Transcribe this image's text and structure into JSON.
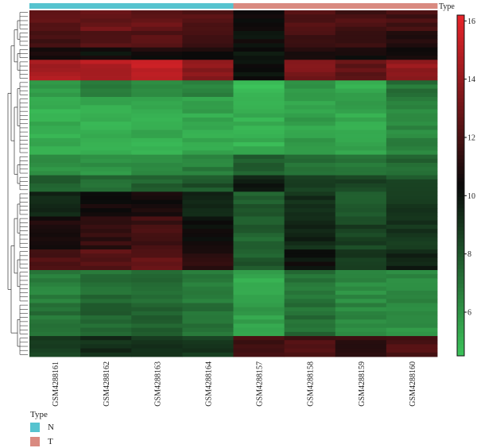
{
  "chart_data": {
    "type": "heatmap",
    "columns": [
      "GSM4288161",
      "GSM4288162",
      "GSM4288163",
      "GSM4288164",
      "GSM4288157",
      "GSM4288158",
      "GSM4288159",
      "GSM4288160"
    ],
    "column_groups": [
      "N",
      "N",
      "N",
      "N",
      "T",
      "T",
      "T",
      "T"
    ],
    "annotation": {
      "title": "Type",
      "legend_title": "Type",
      "groups": [
        {
          "label": "N",
          "color": "#56c3cf"
        },
        {
          "label": "T",
          "color": "#d98a80"
        }
      ]
    },
    "colorbar": {
      "ticks": [
        "6",
        "8",
        "10",
        "12",
        "14",
        "16"
      ],
      "tick_values": [
        6,
        8,
        10,
        12,
        14,
        16
      ],
      "range": [
        4.5,
        16.2
      ],
      "low_color": "#3cc25a",
      "mid_color": "#0a0a0a",
      "high_color": "#e8242a"
    },
    "row_blocks": [
      {
        "rows": 5,
        "values": [
          12.6,
          12.8,
          12.7,
          12.3,
          10.5,
          12.4,
          12.0,
          11.8
        ]
      },
      {
        "rows": 4,
        "values": [
          12.0,
          12.2,
          12.4,
          11.6,
          10.2,
          11.8,
          11.5,
          11.2
        ]
      },
      {
        "rows": 3,
        "values": [
          10.8,
          10.3,
          10.7,
          10.5,
          10.0,
          10.8,
          10.6,
          10.3
        ]
      },
      {
        "rows": 5,
        "values": [
          14.6,
          14.8,
          15.3,
          13.9,
          10.3,
          13.3,
          12.6,
          14.0
        ]
      },
      {
        "rows": 4,
        "values": [
          5.8,
          6.8,
          6.6,
          6.4,
          4.8,
          5.8,
          5.3,
          7.0
        ]
      },
      {
        "rows": 14,
        "values": [
          5.2,
          5.1,
          5.2,
          5.4,
          5.0,
          5.6,
          5.4,
          6.4
        ]
      },
      {
        "rows": 5,
        "values": [
          6.2,
          6.0,
          6.4,
          6.6,
          7.6,
          7.0,
          6.9,
          7.4
        ]
      },
      {
        "rows": 4,
        "values": [
          7.8,
          7.4,
          7.6,
          8.0,
          9.8,
          8.6,
          8.4,
          8.2
        ]
      },
      {
        "rows": 6,
        "values": [
          9.6,
          10.6,
          10.7,
          9.5,
          7.8,
          9.1,
          8.0,
          8.8
        ]
      },
      {
        "rows": 8,
        "values": [
          10.9,
          11.4,
          11.8,
          10.4,
          7.6,
          9.4,
          8.6,
          9.0
        ]
      },
      {
        "rows": 5,
        "values": [
          12.0,
          12.3,
          12.6,
          11.2,
          7.8,
          10.2,
          8.9,
          9.6
        ]
      },
      {
        "rows": 8,
        "values": [
          6.6,
          7.2,
          7.4,
          6.8,
          5.4,
          7.0,
          6.2,
          6.4
        ]
      },
      {
        "rows": 8,
        "values": [
          7.0,
          7.5,
          7.6,
          7.2,
          5.6,
          7.2,
          6.4,
          6.0
        ]
      },
      {
        "rows": 5,
        "values": [
          8.8,
          9.2,
          9.0,
          8.8,
          11.6,
          12.0,
          11.4,
          12.2
        ]
      }
    ],
    "dendrogram": {
      "side": "left"
    }
  }
}
